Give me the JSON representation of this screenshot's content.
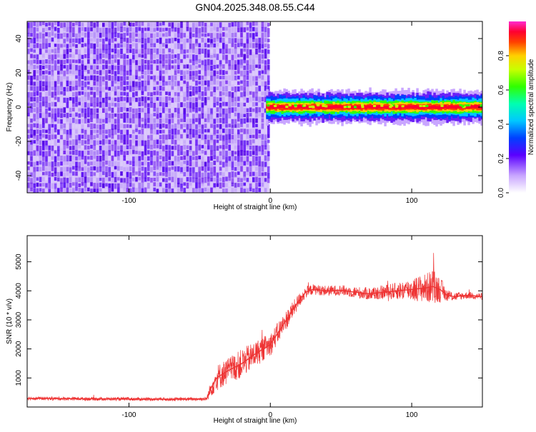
{
  "title": "GN04.2025.348.08.55.C44",
  "colors": {
    "snr_line": "#ee3333",
    "noise_purple": "#7a2cf0",
    "axis": "#000000"
  },
  "chart_data": [
    {
      "type": "heatmap",
      "name": "spectrogram",
      "xlabel": "Height of straight line (km)",
      "ylabel": "Frequency (Hz)",
      "xlim": [
        -172,
        150
      ],
      "ylim": [
        -50,
        50
      ],
      "x_ticks": [
        -100,
        0,
        100
      ],
      "x_tick_labels": [
        "-100",
        "0",
        "100"
      ],
      "y_ticks": [
        -40,
        -20,
        0,
        20,
        40
      ],
      "y_tick_labels": [
        "-40",
        "-20",
        "0",
        "20",
        "40"
      ],
      "noise_region": {
        "x_from": -172,
        "x_to": -1,
        "freq_from": -50,
        "freq_to": 50,
        "amplitude_range": [
          0.0,
          0.25
        ]
      },
      "signal_band": {
        "x_from": -3,
        "x_to": 150,
        "center_freq": 0,
        "half_width_hz": 4,
        "peak_amplitude": 1.0
      },
      "colorbar": {
        "label": "Normalized spectral amplitude",
        "range": [
          0.0,
          1.0
        ],
        "ticks": [
          0.0,
          0.2,
          0.4,
          0.6,
          0.8
        ],
        "tick_labels": [
          "0.0",
          "0.2",
          "0.4",
          "0.6",
          "0.8"
        ]
      }
    },
    {
      "type": "line",
      "name": "snr",
      "xlabel": "Height of straight line (km)",
      "ylabel": "SNR (10 * v/v)",
      "xlim": [
        -172,
        150
      ],
      "ylim": [
        0,
        5900
      ],
      "x_ticks": [
        -100,
        0,
        100
      ],
      "x_tick_labels": [
        "-100",
        "0",
        "100"
      ],
      "y_ticks": [
        1000,
        2000,
        3000,
        4000,
        5000
      ],
      "y_tick_labels": [
        "1000",
        "2000",
        "3000",
        "4000",
        "5000"
      ],
      "series": [
        {
          "name": "SNR",
          "x": [
            -172,
            -150,
            -120,
            -90,
            -60,
            -45,
            -42,
            -38,
            -30,
            -20,
            -10,
            0,
            10,
            20,
            25,
            30,
            40,
            50,
            60,
            70,
            80,
            90,
            100,
            110,
            115,
            120,
            125,
            130,
            140,
            150
          ],
          "y": [
            300,
            290,
            280,
            270,
            270,
            280,
            650,
            1000,
            1250,
            1500,
            1850,
            2150,
            2900,
            3650,
            3950,
            4050,
            4000,
            4020,
            3950,
            3900,
            3950,
            4000,
            4050,
            4100,
            4150,
            4050,
            3850,
            3800,
            3850,
            3800
          ],
          "noise_amplitude": [
            60,
            60,
            60,
            60,
            60,
            70,
            300,
            450,
            450,
            500,
            450,
            400,
            350,
            250,
            200,
            180,
            180,
            180,
            200,
            220,
            250,
            300,
            400,
            500,
            600,
            450,
            200,
            150,
            120,
            120
          ]
        }
      ]
    }
  ]
}
